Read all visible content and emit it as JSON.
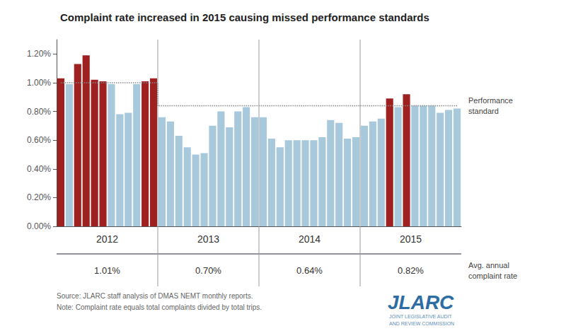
{
  "chart_data": {
    "type": "bar",
    "title": "Complaint rate increased in 2015 causing missed performance standards",
    "categories": [
      null,
      null,
      null,
      null,
      null,
      null,
      null,
      null,
      null,
      null,
      null,
      null,
      null,
      null,
      null,
      null,
      null,
      null,
      null,
      null,
      null,
      null,
      null,
      null,
      null,
      null,
      null,
      null,
      null,
      null,
      null,
      null,
      null,
      null,
      null,
      null,
      null,
      null,
      null,
      null,
      null,
      null,
      null,
      null,
      null,
      null,
      null,
      null
    ],
    "values": [
      1.03,
      0.99,
      1.13,
      1.19,
      1.02,
      1.01,
      0.99,
      0.78,
      0.79,
      0.99,
      1.01,
      1.03,
      0.76,
      0.73,
      0.63,
      0.55,
      0.5,
      0.51,
      0.7,
      0.8,
      0.69,
      0.8,
      0.83,
      0.76,
      0.76,
      0.61,
      0.55,
      0.6,
      0.6,
      0.6,
      0.6,
      0.62,
      0.74,
      0.72,
      0.61,
      0.62,
      0.7,
      0.73,
      0.75,
      0.89,
      0.83,
      0.92,
      0.84,
      0.84,
      0.84,
      0.79,
      0.81,
      0.82
    ],
    "colors": [
      "#9E2020",
      "#A8C8DC",
      "#9E2020",
      "#9E2020",
      "#9E2020",
      "#9E2020",
      "#A8C8DC",
      "#A8C8DC",
      "#A8C8DC",
      "#A8C8DC",
      "#9E2020",
      "#9E2020",
      "#A8C8DC",
      "#A8C8DC",
      "#A8C8DC",
      "#A8C8DC",
      "#A8C8DC",
      "#A8C8DC",
      "#A8C8DC",
      "#A8C8DC",
      "#A8C8DC",
      "#A8C8DC",
      "#A8C8DC",
      "#A8C8DC",
      "#A8C8DC",
      "#A8C8DC",
      "#A8C8DC",
      "#A8C8DC",
      "#A8C8DC",
      "#A8C8DC",
      "#A8C8DC",
      "#A8C8DC",
      "#A8C8DC",
      "#A8C8DC",
      "#A8C8DC",
      "#A8C8DC",
      "#A8C8DC",
      "#A8C8DC",
      "#A8C8DC",
      "#9E2020",
      "#A8C8DC",
      "#9E2020",
      "#A8C8DC",
      "#A8C8DC",
      "#A8C8DC",
      "#A8C8DC",
      "#A8C8DC",
      "#A8C8DC"
    ],
    "ylim": [
      0.0,
      1.3
    ],
    "yticks": [
      {
        "value": 0.0,
        "label": "0.00%"
      },
      {
        "value": 0.2,
        "label": "0.20%"
      },
      {
        "value": 0.4,
        "label": "0.40%"
      },
      {
        "value": 0.6,
        "label": "0.60%"
      },
      {
        "value": 0.8,
        "label": "0.80%"
      },
      {
        "value": 1.0,
        "label": "1.00%"
      },
      {
        "value": 1.2,
        "label": "1.20%"
      }
    ],
    "grid": false,
    "tick_labels": "y",
    "performance_standard": {
      "label": "Performance\nstandard",
      "values": [
        1.0,
        1.0,
        1.0,
        1.0,
        1.0,
        1.0,
        1.0,
        1.0,
        1.0,
        1.0,
        1.0,
        1.0,
        0.84,
        0.84,
        0.84,
        0.84,
        0.84,
        0.84,
        0.84,
        0.84,
        0.84,
        0.84,
        0.84,
        0.84,
        0.84,
        0.84,
        0.84,
        0.84,
        0.84,
        0.84,
        0.84,
        0.84,
        0.84,
        0.84,
        0.84,
        0.84,
        0.84,
        0.84,
        0.84,
        0.84,
        0.84,
        0.84,
        0.84,
        0.84,
        0.84,
        0.84,
        0.84,
        0.84
      ],
      "color": "#888888",
      "line_style": "dotted"
    },
    "year_labels": [
      "2012",
      "2013",
      "2014",
      "2015"
    ],
    "year_avg": [
      "1.01%",
      "0.70%",
      "0.64%",
      "0.82%"
    ],
    "avg_label": "Avg. annual\ncomplaint rate",
    "source_text": "Source: JLARC staff analysis of DMAS NEMT monthly reports.",
    "note_text": "Note: Complaint rate equals total complaints divided by total trips.",
    "logo": {
      "text": "JLARC",
      "subtitle": [
        "JOINT LEGISLATIVE AUDIT",
        "AND REVIEW COMMISSION"
      ],
      "color": "#2E6DA4",
      "subtitle_color": "#5E8EB8"
    }
  }
}
